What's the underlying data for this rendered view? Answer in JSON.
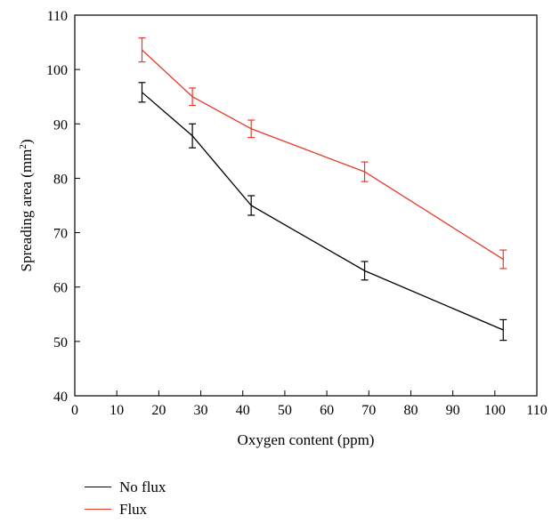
{
  "chart_data": {
    "type": "line",
    "xlabel": "Oxygen content (ppm)",
    "ylabel": "Spreading area (mm",
    "ylabel_sup": "2",
    "ylabel_tail": ")",
    "xlim": [
      0,
      110
    ],
    "ylim": [
      40,
      110
    ],
    "xticks": [
      0,
      10,
      20,
      30,
      40,
      50,
      60,
      70,
      80,
      90,
      100,
      110
    ],
    "yticks": [
      40,
      50,
      60,
      70,
      80,
      90,
      100,
      110
    ],
    "grid": false,
    "legend_position": "bottom-left, below plot",
    "series": [
      {
        "name": "No flux",
        "color": "#000000",
        "x": [
          16,
          28,
          42,
          69,
          102
        ],
        "y": [
          95.8,
          87.8,
          75.0,
          63.0,
          52.1
        ],
        "err": [
          1.8,
          2.2,
          1.8,
          1.7,
          1.9
        ]
      },
      {
        "name": "Flux",
        "color": "#e8392a",
        "x": [
          16,
          28,
          42,
          69,
          102
        ],
        "y": [
          103.6,
          95.0,
          89.1,
          81.2,
          65.1
        ],
        "err": [
          2.2,
          1.6,
          1.6,
          1.8,
          1.7
        ]
      }
    ]
  }
}
